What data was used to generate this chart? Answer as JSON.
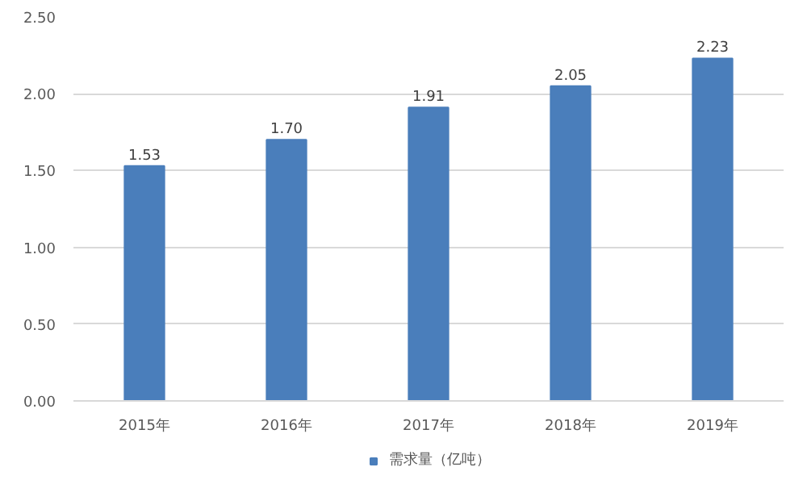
{
  "chart_data": {
    "type": "bar",
    "categories": [
      "2015年",
      "2016年",
      "2017年",
      "2018年",
      "2019年"
    ],
    "series": [
      {
        "name": "需求量（亿吨）",
        "color": "#4a7ebb",
        "values": [
          1.53,
          1.7,
          1.91,
          2.05,
          2.23
        ],
        "value_labels": [
          "1.53",
          "1.70",
          "1.91",
          "2.05",
          "2.23"
        ]
      }
    ],
    "ylim": [
      0,
      2.5
    ],
    "yticks": [
      {
        "value": 0,
        "label": "0.00"
      },
      {
        "value": 0.5,
        "label": "0.50"
      },
      {
        "value": 1,
        "label": "1.00"
      },
      {
        "value": 1.5,
        "label": "1.50"
      },
      {
        "value": 2,
        "label": "2.00"
      },
      {
        "value": 2.5,
        "label": "2.50"
      }
    ],
    "grid": "y",
    "legend": "bottom"
  }
}
